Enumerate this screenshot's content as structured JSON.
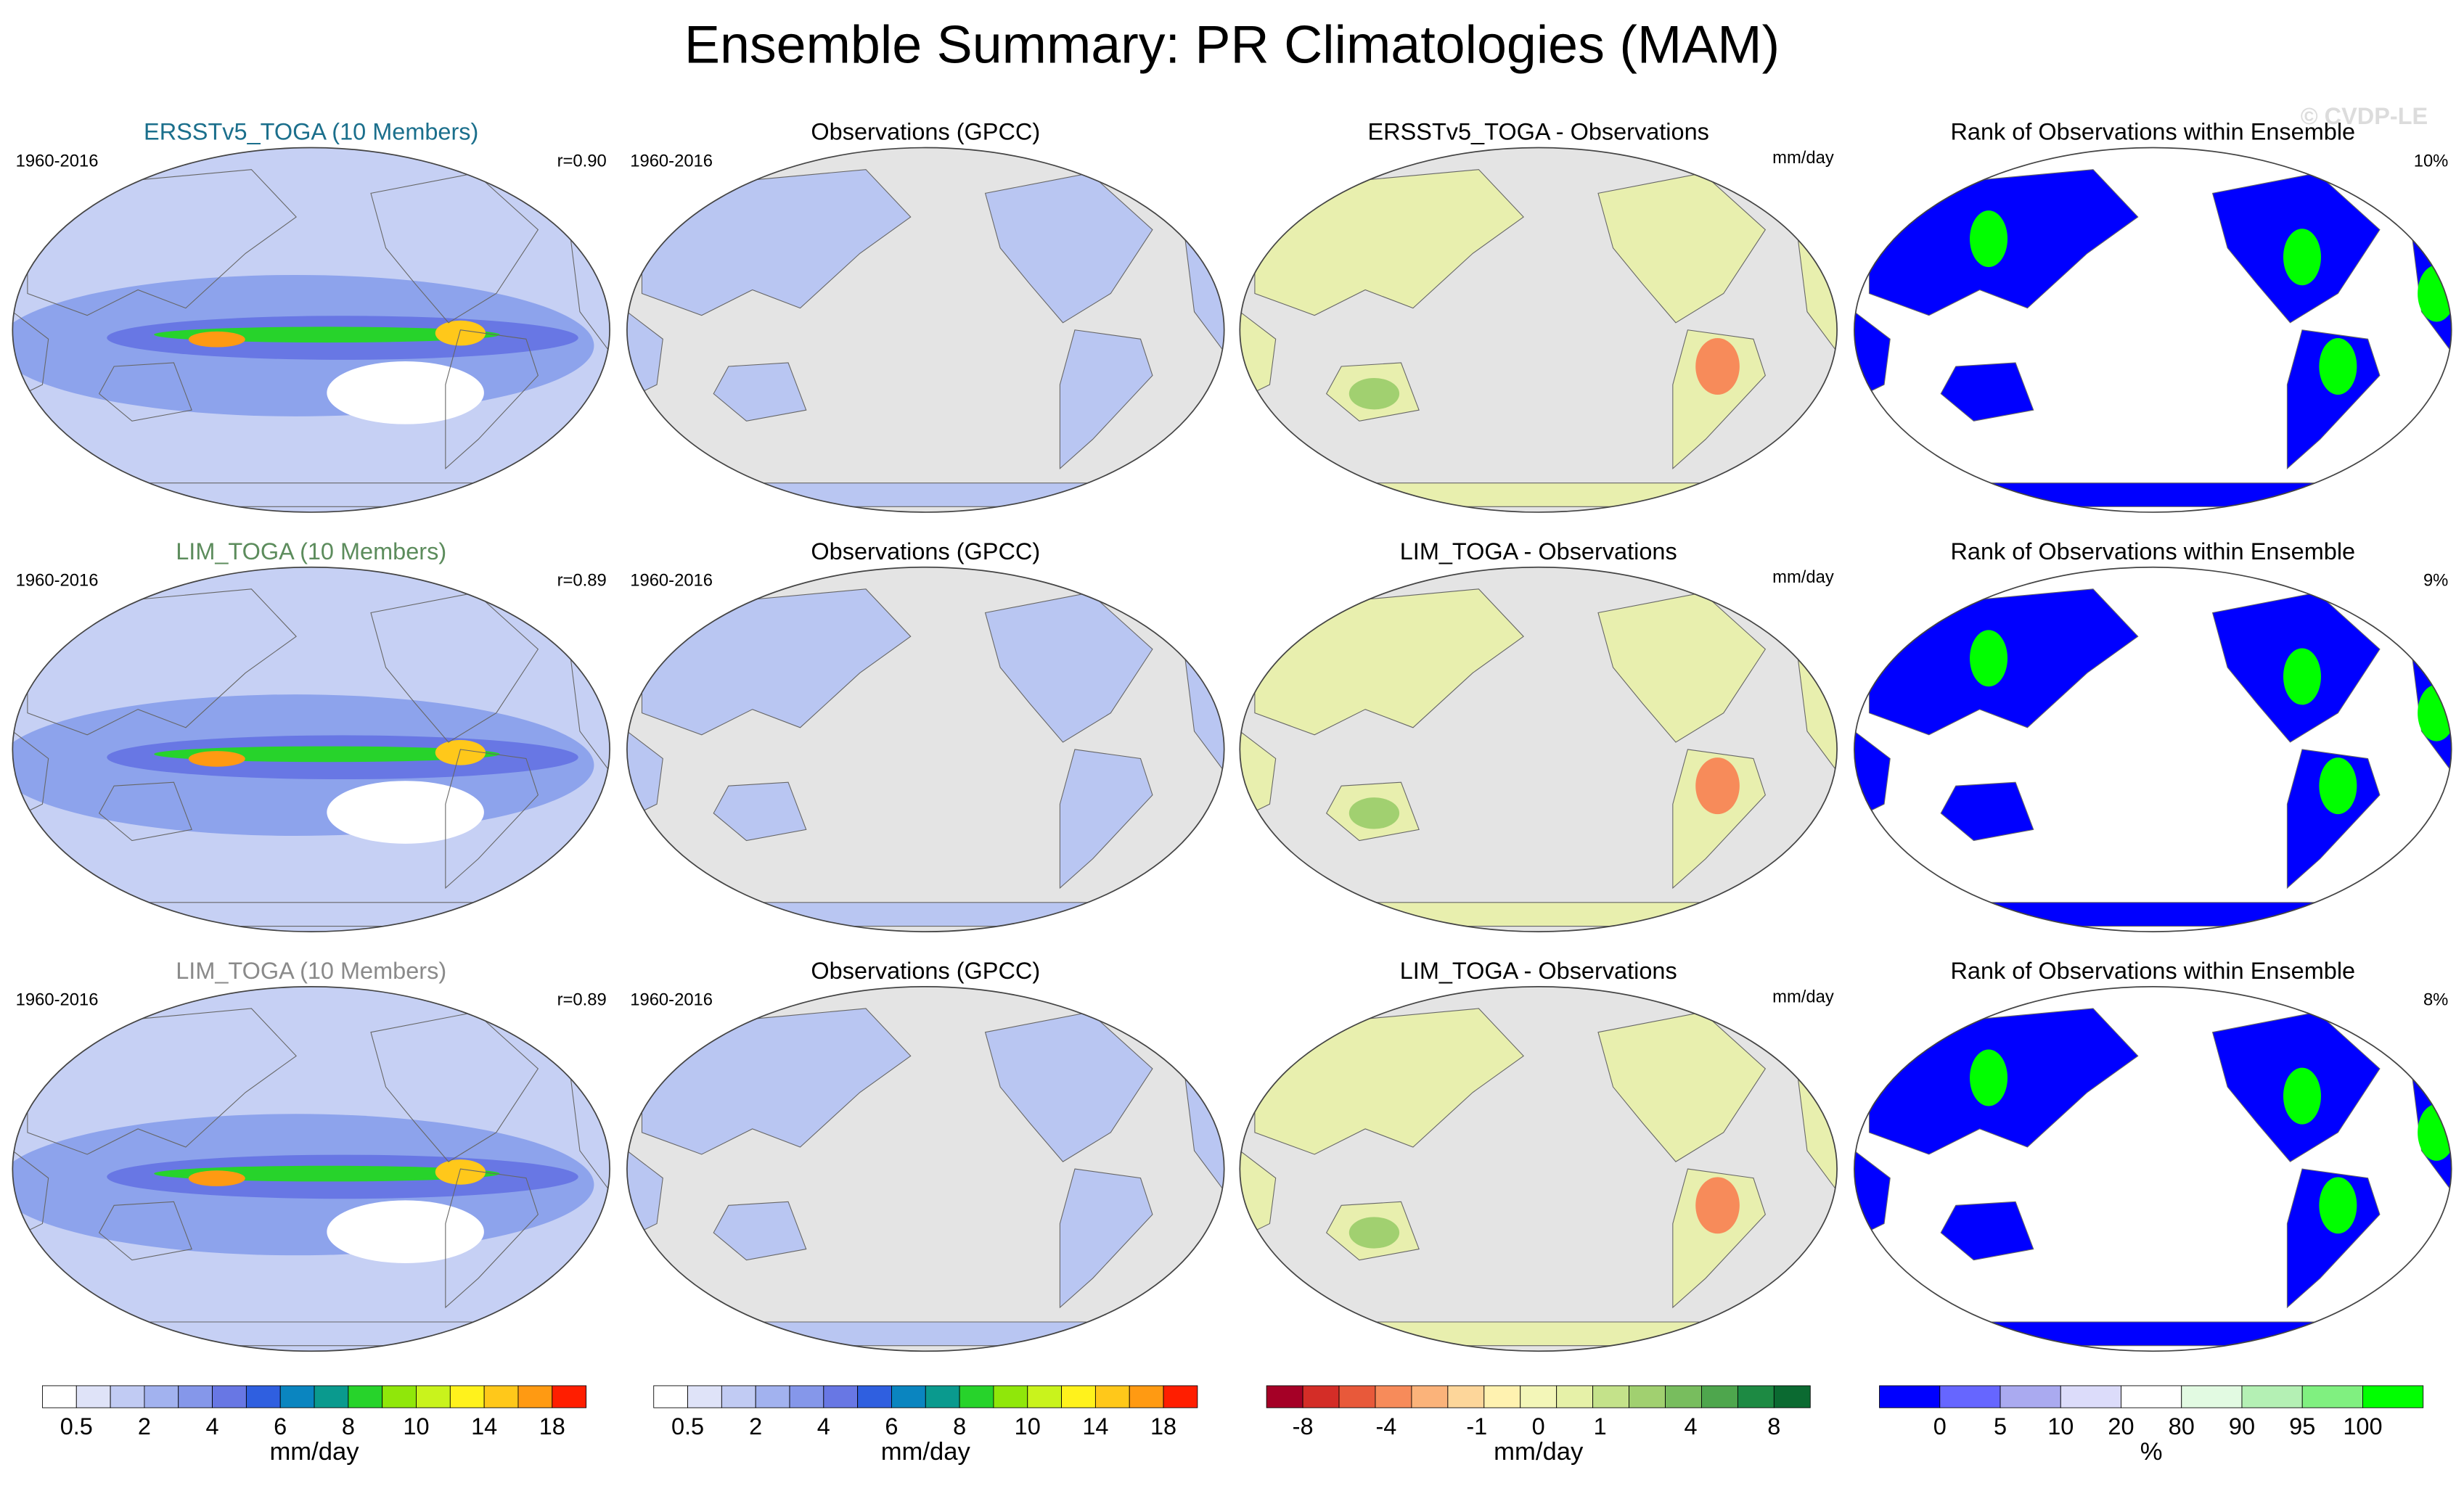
{
  "header": {
    "title": "Ensemble Summary: PR Climatologies (MAM)",
    "watermark": "© CVDP-LE"
  },
  "rows": [
    {
      "panels": [
        {
          "title": "ERSSTv5_TOGA (10 Members)",
          "title_color": "#1b6f8c",
          "left": "1960-2016",
          "right": "r=0.90"
        },
        {
          "title": "Observations (GPCC)",
          "left": "1960-2016"
        },
        {
          "title": "ERSSTv5_TOGA - Observations",
          "right": "mm/day"
        },
        {
          "title": "Rank of Observations within Ensemble",
          "right": "10%"
        }
      ]
    },
    {
      "panels": [
        {
          "title": "LIM_TOGA (10 Members)",
          "title_color": "#5c8c5c",
          "left": "1960-2016",
          "right": "r=0.89"
        },
        {
          "title": "Observations (GPCC)",
          "left": "1960-2016"
        },
        {
          "title": "LIM_TOGA - Observations",
          "right": "mm/day"
        },
        {
          "title": "Rank of Observations within Ensemble",
          "right": "9%"
        }
      ]
    },
    {
      "panels": [
        {
          "title": "LIM_TOGA (10 Members)",
          "title_color": "#8a8a8a",
          "left": "1960-2016",
          "right": "r=0.89"
        },
        {
          "title": "Observations (GPCC)",
          "left": "1960-2016"
        },
        {
          "title": "LIM_TOGA - Observations",
          "right": "mm/day"
        },
        {
          "title": "Rank of Observations within Ensemble",
          "right": "8%"
        }
      ]
    }
  ],
  "colorbars": [
    {
      "labels": [
        "0.5",
        "2",
        "4",
        "6",
        "8",
        "10",
        "14",
        "18"
      ],
      "units": "mm/day",
      "colors": [
        "#ffffff",
        "#dfe3f8",
        "#c1cbf3",
        "#a2b2ef",
        "#8597ea",
        "#6877e4",
        "#2f5fe0",
        "#0a85c0",
        "#0a9a8e",
        "#27d32b",
        "#90e70a",
        "#c9f31c",
        "#fff21c",
        "#ffc81a",
        "#ff9a12",
        "#ff1e00"
      ]
    },
    {
      "labels": [
        "0.5",
        "2",
        "4",
        "6",
        "8",
        "10",
        "14",
        "18"
      ],
      "units": "mm/day",
      "colors": [
        "#ffffff",
        "#dfe3f8",
        "#c1cbf3",
        "#a2b2ef",
        "#8597ea",
        "#6877e4",
        "#2f5fe0",
        "#0a85c0",
        "#0a9a8e",
        "#27d32b",
        "#90e70a",
        "#c9f31c",
        "#fff21c",
        "#ffc81a",
        "#ff9a12",
        "#ff1e00"
      ]
    },
    {
      "labels": [
        "-8",
        "-4",
        "-1",
        "0",
        "1",
        "4",
        "8"
      ],
      "units": "mm/day",
      "colors": [
        "#a50026",
        "#d42d27",
        "#e8593a",
        "#f78b5a",
        "#fbb37a",
        "#fdd69a",
        "#fff2b0",
        "#f3f6b8",
        "#e6f1a8",
        "#c4e28a",
        "#a1d070",
        "#78bd5e",
        "#4ea64d",
        "#1d8a43",
        "#0b6a31"
      ]
    },
    {
      "labels": [
        "0",
        "5",
        "10",
        "20",
        "80",
        "90",
        "95",
        "100"
      ],
      "units": "%",
      "colors": [
        "#0000ff",
        "#6666ff",
        "#aaaaf0",
        "#dcdcfa",
        "#ffffff",
        "#e2fae2",
        "#b4f0b4",
        "#80f080",
        "#00ff00"
      ]
    }
  ]
}
